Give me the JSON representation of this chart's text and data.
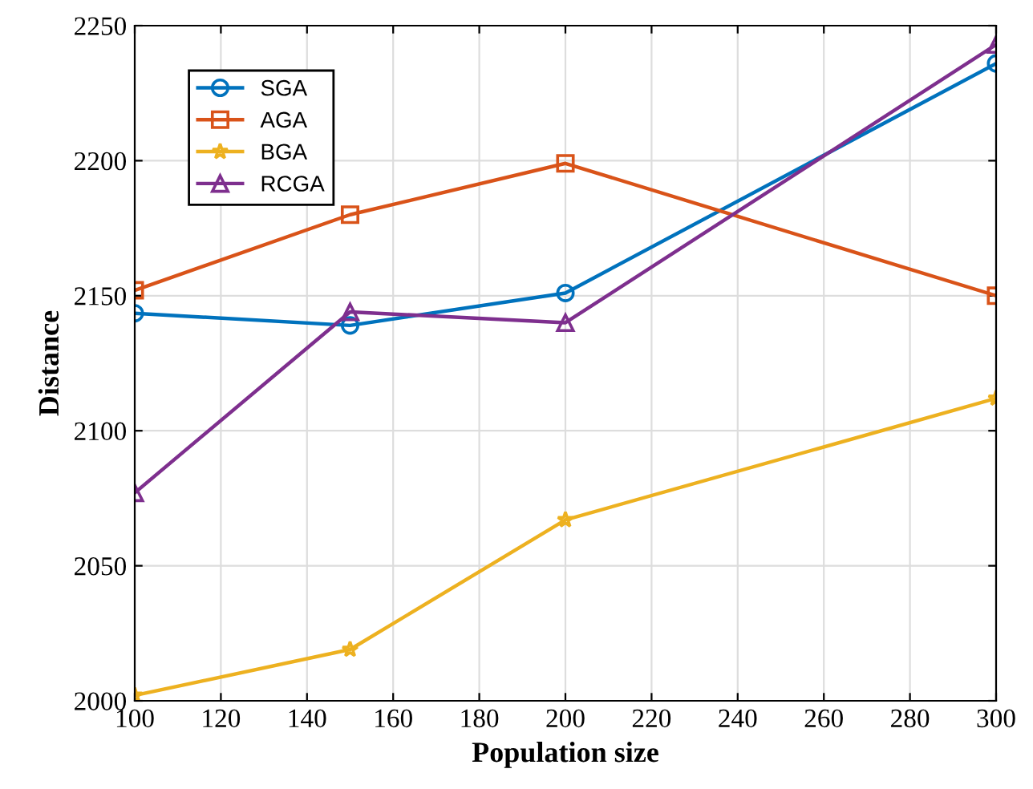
{
  "chart_data": {
    "type": "line",
    "xlabel": "Population size",
    "ylabel": "Distance",
    "x": [
      100,
      150,
      200,
      300
    ],
    "series": [
      {
        "name": "SGA",
        "color": "#0072bd",
        "marker": "circle",
        "values": [
          2143.5,
          2139,
          2151,
          2236
        ]
      },
      {
        "name": "AGA",
        "color": "#d95319",
        "marker": "square",
        "values": [
          2152,
          2180,
          2199,
          2150
        ]
      },
      {
        "name": "BGA",
        "color": "#edb120",
        "marker": "star",
        "values": [
          2002,
          2019,
          2067,
          2112
        ]
      },
      {
        "name": "RCGA",
        "color": "#7e2f8e",
        "marker": "triangle",
        "values": [
          2077,
          2144,
          2140,
          2243
        ]
      }
    ],
    "xlim": [
      100,
      300
    ],
    "xticks": [
      100,
      120,
      140,
      160,
      180,
      200,
      220,
      240,
      260,
      280,
      300
    ],
    "ylim": [
      2000,
      2250
    ],
    "yticks": [
      2000,
      2050,
      2100,
      2150,
      2200,
      2250
    ],
    "grid": true,
    "legend": "top left",
    "line_style": "solid"
  }
}
